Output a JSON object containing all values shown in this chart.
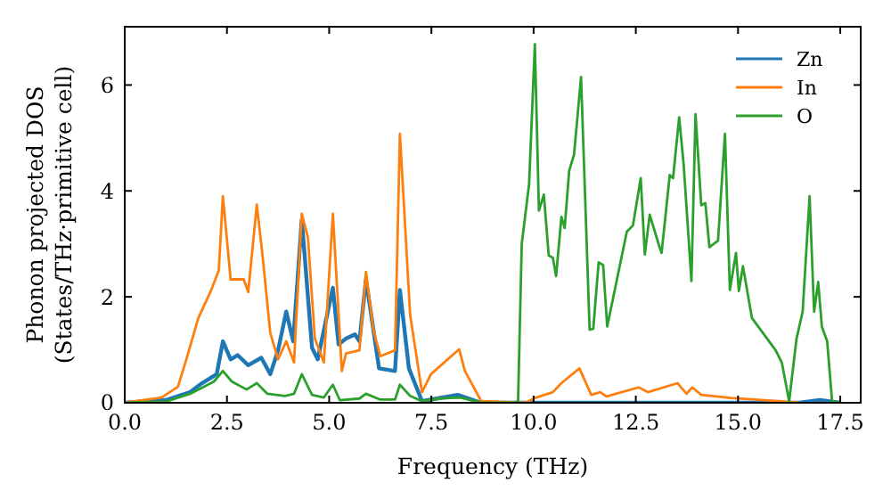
{
  "chart_data": {
    "type": "line",
    "xlabel": "Frequency (THz)",
    "ylabel": "Phonon projected DOS\n(States/THz·primitive cell)",
    "xlim": [
      0,
      18
    ],
    "ylim": [
      0,
      7.1
    ],
    "xticks": [
      {
        "value": 0,
        "label": "0.0"
      },
      {
        "value": 2.5,
        "label": "2.5"
      },
      {
        "value": 5,
        "label": "5.0"
      },
      {
        "value": 7.5,
        "label": "7.5"
      },
      {
        "value": 10,
        "label": "10.0"
      },
      {
        "value": 12.5,
        "label": "12.5"
      },
      {
        "value": 15,
        "label": "15.0"
      },
      {
        "value": 17.5,
        "label": "17.5"
      }
    ],
    "yticks": [
      0,
      2,
      4,
      6
    ],
    "legend": "top right",
    "grid": false,
    "marker": "none",
    "line_style": "solid",
    "series": [
      {
        "name": "Zn",
        "color": "#1f77b4",
        "x": [
          0,
          1.0,
          1.6,
          1.89,
          2.25,
          2.4,
          2.59,
          2.76,
          3.02,
          3.34,
          3.56,
          3.75,
          3.95,
          4.12,
          4.33,
          4.58,
          4.72,
          5.09,
          5.23,
          5.41,
          5.63,
          5.74,
          5.9,
          6.22,
          6.61,
          6.73,
          6.95,
          7.27,
          8.14,
          8.72,
          16.5,
          17.0,
          17.5
        ],
        "values": [
          0,
          0.05,
          0.2,
          0.37,
          0.54,
          1.16,
          0.82,
          0.9,
          0.71,
          0.85,
          0.54,
          0.99,
          1.72,
          1.16,
          3.46,
          1.04,
          0.82,
          2.17,
          1.1,
          1.21,
          1.29,
          1.16,
          2.33,
          0.65,
          0.6,
          2.13,
          0.65,
          0.03,
          0.15,
          0,
          0,
          0.05,
          0
        ]
      },
      {
        "name": "In",
        "color": "#ff7f0e",
        "x": [
          0,
          0.9,
          1.3,
          1.5,
          1.8,
          2.1,
          2.3,
          2.4,
          2.59,
          2.91,
          3.02,
          3.23,
          3.37,
          3.56,
          3.75,
          3.95,
          4.14,
          4.33,
          4.48,
          4.65,
          4.87,
          5.09,
          5.31,
          5.41,
          5.74,
          5.9,
          6.08,
          6.25,
          6.61,
          6.73,
          6.98,
          7.27,
          7.49,
          8.18,
          8.32,
          8.72,
          9.8,
          10.03,
          10.47,
          10.68,
          11.12,
          11.41,
          11.63,
          11.78,
          12.57,
          12.79,
          13.52,
          13.74,
          13.88,
          14.1,
          14.83,
          15.99,
          16.5
        ],
        "values": [
          0,
          0.1,
          0.3,
          0.8,
          1.6,
          2.1,
          2.5,
          3.9,
          2.33,
          2.33,
          2.09,
          3.74,
          2.78,
          1.32,
          0.82,
          1.16,
          0.76,
          3.57,
          3.12,
          1.21,
          0.76,
          3.57,
          0.6,
          0.93,
          0.99,
          2.47,
          1.38,
          0.88,
          0.99,
          5.08,
          1.66,
          0.2,
          0.54,
          1.01,
          0.6,
          0.03,
          0,
          0.09,
          0.2,
          0.37,
          0.65,
          0.15,
          0.2,
          0.12,
          0.29,
          0.2,
          0.37,
          0.17,
          0.29,
          0.15,
          0.09,
          0.03,
          0
        ]
      },
      {
        "name": "O",
        "color": "#2ca02c",
        "x": [
          0,
          1.0,
          1.6,
          2.18,
          2.4,
          2.62,
          2.98,
          3.23,
          3.49,
          3.92,
          4.14,
          4.33,
          4.58,
          4.87,
          5.09,
          5.26,
          5.74,
          5.9,
          6.25,
          6.61,
          6.73,
          6.98,
          7.27,
          7.7,
          8.21,
          8.72,
          9.5,
          9.62,
          9.71,
          9.89,
          10.03,
          10.13,
          10.25,
          10.37,
          10.47,
          10.55,
          10.68,
          10.76,
          10.87,
          10.99,
          11.16,
          11.37,
          11.46,
          11.59,
          11.7,
          11.8,
          11.95,
          12.28,
          12.43,
          12.62,
          12.72,
          12.84,
          13.08,
          13.13,
          13.33,
          13.41,
          13.56,
          13.67,
          13.86,
          13.96,
          14.1,
          14.2,
          14.3,
          14.51,
          14.68,
          14.8,
          14.95,
          15.02,
          15.12,
          15.34,
          15.92,
          16.07,
          16.25,
          16.43,
          16.58,
          16.75,
          16.86,
          16.96,
          17.05,
          17.18,
          17.3,
          17.5
        ],
        "values": [
          0,
          0.02,
          0.17,
          0.4,
          0.6,
          0.4,
          0.25,
          0.37,
          0.17,
          0.13,
          0.17,
          0.54,
          0.15,
          0.1,
          0.34,
          0.05,
          0.08,
          0.17,
          0.06,
          0.06,
          0.34,
          0.13,
          0.03,
          0.08,
          0.1,
          0,
          0,
          0.03,
          3.0,
          4.13,
          6.77,
          3.63,
          3.93,
          2.78,
          2.74,
          2.39,
          3.51,
          3.3,
          4.38,
          4.69,
          6.15,
          1.38,
          1.4,
          2.65,
          2.6,
          1.44,
          2.0,
          3.23,
          3.35,
          4.24,
          2.8,
          3.55,
          2.94,
          2.83,
          4.3,
          4.24,
          5.39,
          4.5,
          2.3,
          5.45,
          3.73,
          3.77,
          2.94,
          3.06,
          5.08,
          2.13,
          2.83,
          2.11,
          2.58,
          1.6,
          0.99,
          0.76,
          0.03,
          1.21,
          1.72,
          3.9,
          1.72,
          2.28,
          1.44,
          1.16,
          0.03,
          0
        ]
      }
    ]
  }
}
